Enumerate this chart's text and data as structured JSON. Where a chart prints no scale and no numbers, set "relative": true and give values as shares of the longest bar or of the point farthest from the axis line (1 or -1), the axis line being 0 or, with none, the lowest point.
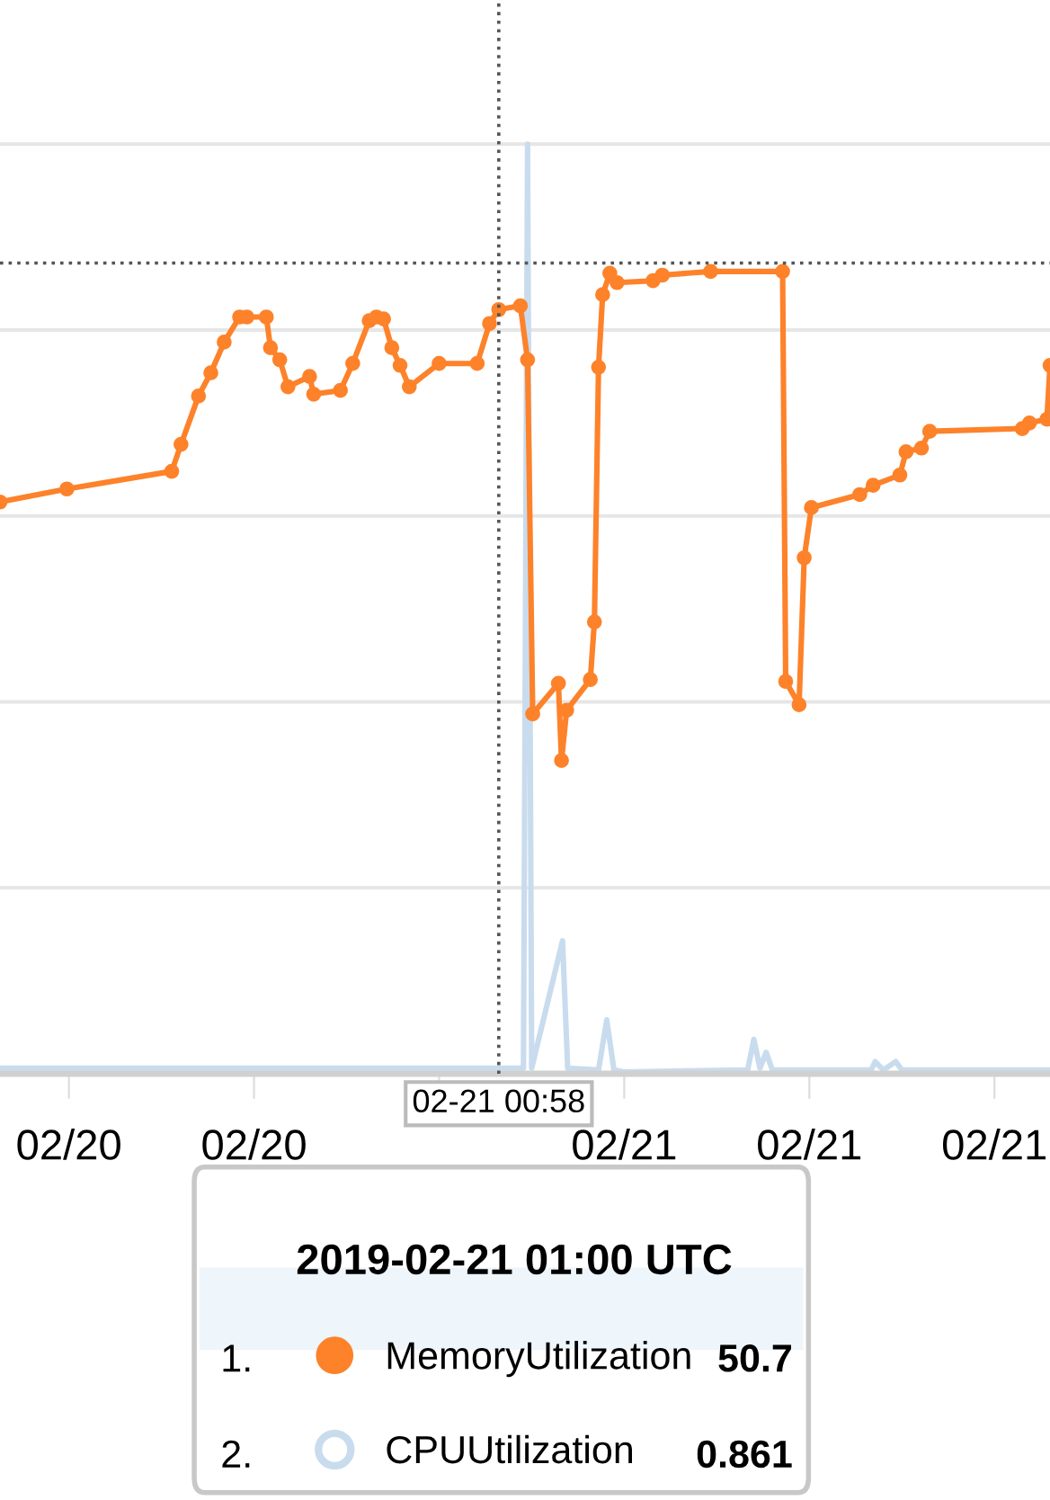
{
  "chart_data": {
    "type": "line",
    "relative": true,
    "grid": "y",
    "legend": "bottom",
    "legend_title": "2019-02-21 01:00 UTC",
    "annotations": [
      "1.",
      "2.",
      "50.7",
      "0.861"
    ],
    "xlim": [
      "2019-02-20T16:53",
      "2019-02-21T09:54"
    ],
    "xticks": [
      {
        "value": "2019-02-20T18:00",
        "label": "02/20"
      },
      {
        "value": "2019-02-20T21:00",
        "label": "02/20"
      },
      {
        "value": "2019-02-21T00:00",
        "label": null
      },
      {
        "value": "2019-02-21T03:00",
        "label": "02/21"
      },
      {
        "value": "2019-02-21T06:00",
        "label": "02/21"
      },
      {
        "value": "2019-02-21T09:00",
        "label": "02/21"
      }
    ],
    "series": [
      {
        "name": "MemoryUtilization",
        "color": "#fd822a",
        "marker": "circle",
        "x": [
          "2019-02-20T16:53",
          "2019-02-20T17:58",
          "2019-02-20T19:40",
          "2019-02-20T19:49",
          "2019-02-20T20:06",
          "2019-02-20T20:18",
          "2019-02-20T20:31",
          "2019-02-20T20:46",
          "2019-02-20T20:53",
          "2019-02-20T21:12",
          "2019-02-20T21:16",
          "2019-02-20T21:25",
          "2019-02-20T21:33",
          "2019-02-20T21:54",
          "2019-02-20T21:58",
          "2019-02-20T22:24",
          "2019-02-20T22:36",
          "2019-02-20T22:52",
          "2019-02-20T22:59",
          "2019-02-20T23:06",
          "2019-02-20T23:14",
          "2019-02-20T23:22",
          "2019-02-20T23:31",
          "2019-02-21T00:00",
          "2019-02-21T00:37",
          "2019-02-21T00:49",
          "2019-02-21T00:58",
          "2019-02-21T01:19",
          "2019-02-21T01:26",
          "2019-02-21T01:31",
          "2019-02-21T01:56",
          "2019-02-21T01:59",
          "2019-02-21T02:04",
          "2019-02-21T02:27",
          "2019-02-21T02:31",
          "2019-02-21T02:35",
          "2019-02-21T02:39",
          "2019-02-21T02:46",
          "2019-02-21T02:53",
          "2019-02-21T03:28",
          "2019-02-21T03:37",
          "2019-02-21T04:24",
          "2019-02-21T05:34",
          "2019-02-21T05:37",
          "2019-02-21T05:50",
          "2019-02-21T05:55",
          "2019-02-21T06:02",
          "2019-02-21T06:49",
          "2019-02-21T07:02",
          "2019-02-21T07:28",
          "2019-02-21T07:34",
          "2019-02-21T07:49",
          "2019-02-21T07:57",
          "2019-02-21T09:27",
          "2019-02-21T09:34",
          "2019-02-21T09:51",
          "2019-02-21T09:54"
        ],
        "values": [
          0.615,
          0.629,
          0.648,
          0.677,
          0.729,
          0.754,
          0.787,
          0.814,
          0.814,
          0.814,
          0.781,
          0.768,
          0.739,
          0.75,
          0.731,
          0.735,
          0.764,
          0.81,
          0.814,
          0.812,
          0.781,
          0.762,
          0.739,
          0.764,
          0.764,
          0.807,
          0.822,
          0.826,
          0.768,
          0.387,
          0.42,
          0.337,
          0.391,
          0.424,
          0.486,
          0.76,
          0.838,
          0.861,
          0.851,
          0.853,
          0.859,
          0.863,
          0.863,
          0.422,
          0.397,
          0.555,
          0.609,
          0.623,
          0.633,
          0.644,
          0.669,
          0.673,
          0.691,
          0.694,
          0.7,
          0.704,
          0.762
        ]
      },
      {
        "name": "CPUUtilization",
        "color": "#c9dcee",
        "marker": "none",
        "x": [
          "2019-02-20T16:53",
          "2019-02-21T01:22",
          "2019-02-21T01:26",
          "2019-02-21T01:30",
          "2019-02-21T02:00",
          "2019-02-21T02:05",
          "2019-02-21T02:35",
          "2019-02-21T02:43",
          "2019-02-21T02:50",
          "2019-02-21T03:00",
          "2019-02-21T05:00",
          "2019-02-21T05:06",
          "2019-02-21T05:12",
          "2019-02-21T05:18",
          "2019-02-21T05:24",
          "2019-02-21T07:00",
          "2019-02-21T07:04",
          "2019-02-21T07:12",
          "2019-02-21T07:24",
          "2019-02-21T07:30",
          "2019-02-21T09:54"
        ],
        "values": [
          0.006,
          0.006,
          1.0,
          0.006,
          0.143,
          0.006,
          0.004,
          0.058,
          0.004,
          0.002,
          0.004,
          0.037,
          0.006,
          0.023,
          0.004,
          0.004,
          0.013,
          0.004,
          0.013,
          0.004,
          0.004
        ]
      }
    ],
    "ref_lines": [
      {
        "axis": "x",
        "value": "2019-02-21T00:58",
        "label": "02-21 00:58",
        "color": "#555555",
        "line_style": "dotted"
      },
      {
        "axis": "y",
        "value": 0.872,
        "color": "#555555",
        "line_style": "dotted"
      }
    ]
  }
}
